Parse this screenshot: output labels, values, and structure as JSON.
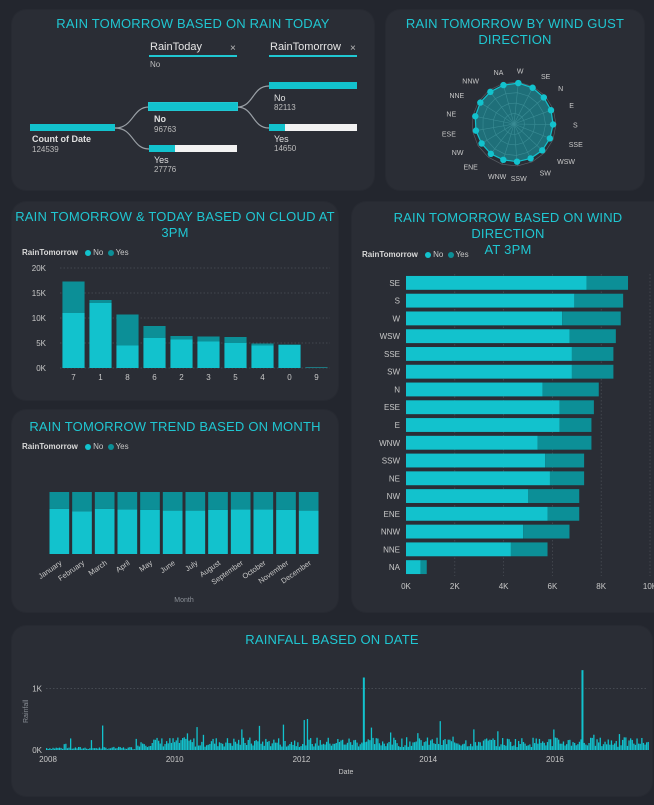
{
  "colors": {
    "no": "#12c2cd",
    "yes": "#0c8f97",
    "accent": "#20c7d2",
    "bar_bg": "#f2f2f2",
    "grid": "#4b4f57"
  },
  "decomp": {
    "title": "RAIN TOMORROW BASED ON RAIN TODAY",
    "level1_header": "RainToday",
    "level1_filter": "No",
    "level2_header": "RainTomorrow",
    "close_glyph": "×",
    "root": {
      "label": "Count of Date",
      "value": "124539"
    },
    "today_no": {
      "label": "No",
      "value": "96763",
      "fraction": 1.0
    },
    "today_yes": {
      "label": "Yes",
      "value": "27776",
      "fraction": 0.29
    },
    "tomorrow_no": {
      "label": "No",
      "value": "82113",
      "fraction": 1.0
    },
    "tomorrow_yes": {
      "label": "Yes",
      "value": "14650",
      "fraction": 0.18
    }
  },
  "radar": {
    "title_line1": "RAIN TOMORROW BY WIND GUST",
    "title_line2": "DIRECTION",
    "chart_data": {
      "type": "radar",
      "categories": [
        "W",
        "SE",
        "N",
        "E",
        "S",
        "SSE",
        "WSW",
        "SW",
        "SSW",
        "WNW",
        "ENE",
        "NW",
        "ESE",
        "NE",
        "NNE",
        "NNW",
        "NA"
      ],
      "values": [
        0.98,
        0.97,
        0.95,
        0.94,
        0.93,
        0.92,
        0.92,
        0.91,
        0.9,
        0.89,
        0.9,
        0.9,
        0.92,
        0.94,
        0.95,
        0.95,
        0.96
      ]
    }
  },
  "cloud": {
    "title_line1": "RAIN TOMORROW & TODAY BASED ON CLOUD AT",
    "title_line2": "3PM",
    "legend_title": "RainTomorrow",
    "legend_no": "No",
    "legend_yes": "Yes",
    "chart_data": {
      "type": "bar",
      "stacked": true,
      "categories": [
        "7",
        "1",
        "8",
        "6",
        "2",
        "3",
        "5",
        "4",
        "0",
        "9"
      ],
      "series": [
        {
          "name": "No",
          "values": [
            11000,
            13000,
            4500,
            6000,
            5700,
            5300,
            5000,
            4500,
            4600,
            100
          ]
        },
        {
          "name": "Yes",
          "values": [
            6300,
            600,
            6200,
            2400,
            700,
            1000,
            1200,
            400,
            100,
            0
          ]
        }
      ],
      "yticks": [
        "0K",
        "5K",
        "10K",
        "15K",
        "20K"
      ],
      "ylim": [
        0,
        20000
      ]
    }
  },
  "month": {
    "title": "RAIN TOMORROW TREND BASED ON MONTH",
    "legend_title": "RainTomorrow",
    "legend_no": "No",
    "legend_yes": "Yes",
    "xlabel": "Month",
    "chart_data": {
      "type": "area",
      "categories": [
        "January",
        "February",
        "March",
        "April",
        "May",
        "June",
        "July",
        "August",
        "September",
        "October",
        "November",
        "December"
      ],
      "series": [
        {
          "name": "No",
          "values": [
            0.73,
            0.69,
            0.73,
            0.72,
            0.71,
            0.7,
            0.7,
            0.71,
            0.72,
            0.72,
            0.71,
            0.7
          ]
        },
        {
          "name": "Yes",
          "values": [
            0.27,
            0.31,
            0.27,
            0.28,
            0.29,
            0.3,
            0.3,
            0.29,
            0.28,
            0.28,
            0.29,
            0.3
          ]
        }
      ]
    }
  },
  "wind3": {
    "title_line1": "RAIN TOMORROW BASED ON WIND DIRECTION",
    "title_line2": "AT 3PM",
    "legend_title": "RainTomorrow",
    "legend_no": "No",
    "legend_yes": "Yes",
    "chart_data": {
      "type": "bar",
      "orientation": "horizontal",
      "stacked": true,
      "categories": [
        "SE",
        "S",
        "W",
        "WSW",
        "SSE",
        "SW",
        "N",
        "ESE",
        "E",
        "WNW",
        "SSW",
        "NE",
        "NW",
        "ENE",
        "NNW",
        "NNE",
        "NA"
      ],
      "series": [
        {
          "name": "No",
          "values": [
            7400,
            6900,
            6400,
            6700,
            6800,
            6800,
            5600,
            6300,
            6300,
            5400,
            5700,
            5900,
            5000,
            5800,
            4800,
            4300,
            600
          ]
        },
        {
          "name": "Yes",
          "values": [
            1700,
            2000,
            2400,
            1900,
            1700,
            1700,
            2300,
            1400,
            1300,
            2200,
            1600,
            1400,
            2100,
            1300,
            1900,
            1500,
            250
          ]
        }
      ],
      "xticks": [
        "0K",
        "2K",
        "4K",
        "6K",
        "8K",
        "10K"
      ],
      "xlim": [
        0,
        10000
      ]
    }
  },
  "rain": {
    "title": "RAINFALL BASED ON DATE",
    "ylabel": "Rainfall",
    "xlabel": "Date",
    "chart_data": {
      "type": "bar",
      "x_range": [
        2008,
        2017.5
      ],
      "xticks": [
        "2008",
        "2010",
        "2012",
        "2014",
        "2016"
      ],
      "yticks": [
        "0K",
        "1K"
      ],
      "ylim": [
        0,
        1400
      ],
      "peaks": [
        {
          "year": 2013.0,
          "value": 1180
        },
        {
          "year": 2016.45,
          "value": 1300
        }
      ]
    }
  }
}
